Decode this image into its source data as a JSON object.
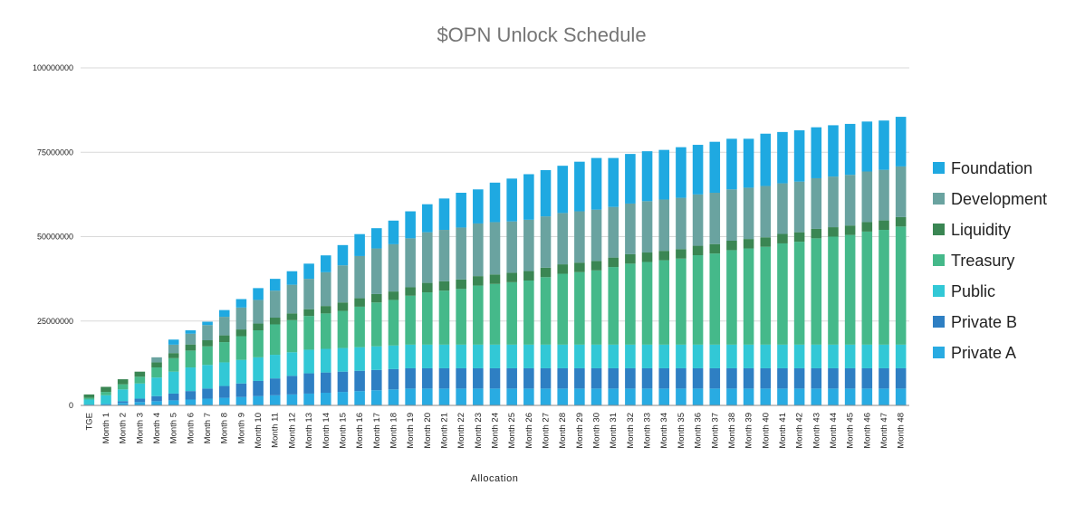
{
  "chart_data": {
    "type": "bar",
    "stacked": true,
    "title": "$OPN Unlock Schedule",
    "xlabel": "Allocation",
    "ylabel": "",
    "ylim": [
      0,
      100000000
    ],
    "yticks": [
      0,
      25000000,
      50000000,
      75000000,
      100000000
    ],
    "ytick_labels": [
      "0",
      "25000000",
      "50000000",
      "75000000",
      "100000000"
    ],
    "grid": true,
    "legend_position": "right",
    "categories": [
      "TGE",
      "Month 1",
      "Month 2",
      "Month 3",
      "Month 4",
      "Month 5",
      "Month 6",
      "Month 7",
      "Month 8",
      "Month 9",
      "Month 10",
      "Month 11",
      "Month 12",
      "Month 13",
      "Month 14",
      "Month 15",
      "Month 16",
      "Month 17",
      "Month 18",
      "Month 19",
      "Month 20",
      "Month 21",
      "Month 22",
      "Month 23",
      "Month 24",
      "Month 25",
      "Month 26",
      "Month 27",
      "Month 28",
      "Month 29",
      "Month 30",
      "Month 31",
      "Month 32",
      "Month 33",
      "Month 34",
      "Month 35",
      "Month 36",
      "Month 37",
      "Month 38",
      "Month 39",
      "Month 40",
      "Month 41",
      "Month 42",
      "Month 43",
      "Month 44",
      "Month 45",
      "Month 46",
      "Month 47",
      "Month 48"
    ],
    "series": [
      {
        "name": "Private A",
        "color": "#29abe2",
        "values": [
          250000,
          500000,
          750000,
          1000000,
          1250000,
          1500000,
          1750000,
          2000000,
          2250000,
          2500000,
          2750000,
          3000000,
          3250000,
          3500000,
          3750000,
          4000000,
          4250000,
          4500000,
          4750000,
          5000000,
          5000000,
          5000000,
          5000000,
          5000000,
          5000000,
          5000000,
          5000000,
          5000000,
          5000000,
          5000000,
          5000000,
          5000000,
          5000000,
          5000000,
          5000000,
          5000000,
          5000000,
          5000000,
          5000000,
          5000000,
          5000000,
          5000000,
          5000000,
          5000000,
          5000000,
          5000000,
          5000000,
          5000000,
          5000000
        ]
      },
      {
        "name": "Private B",
        "color": "#2e7fc3",
        "values": [
          0,
          0,
          500000,
          1000000,
          1500000,
          2000000,
          2500000,
          3000000,
          3500000,
          4000000,
          4500000,
          5000000,
          5500000,
          6000000,
          6000000,
          6000000,
          6000000,
          6000000,
          6000000,
          6000000,
          6000000,
          6000000,
          6000000,
          6000000,
          6000000,
          6000000,
          6000000,
          6000000,
          6000000,
          6000000,
          6000000,
          6000000,
          6000000,
          6000000,
          6000000,
          6000000,
          6000000,
          6000000,
          6000000,
          6000000,
          6000000,
          6000000,
          6000000,
          6000000,
          6000000,
          6000000,
          6000000,
          6000000,
          6000000
        ]
      },
      {
        "name": "Public",
        "color": "#32c8d6",
        "values": [
          1500000,
          2500000,
          3500000,
          4500000,
          5500000,
          6500000,
          7000000,
          7000000,
          7000000,
          7000000,
          7000000,
          7000000,
          7000000,
          7000000,
          7000000,
          7000000,
          7000000,
          7000000,
          7000000,
          7000000,
          7000000,
          7000000,
          7000000,
          7000000,
          7000000,
          7000000,
          7000000,
          7000000,
          7000000,
          7000000,
          7000000,
          7000000,
          7000000,
          7000000,
          7000000,
          7000000,
          7000000,
          7000000,
          7000000,
          7000000,
          7000000,
          7000000,
          7000000,
          7000000,
          7000000,
          7000000,
          7000000,
          7000000,
          7000000
        ]
      },
      {
        "name": "Treasury",
        "color": "#45b98a",
        "values": [
          500000,
          1000000,
          1500000,
          2000000,
          3000000,
          4000000,
          5000000,
          5500000,
          6000000,
          7000000,
          8000000,
          9000000,
          9500000,
          10000000,
          10500000,
          11000000,
          12000000,
          13000000,
          13500000,
          14500000,
          15500000,
          16000000,
          16500000,
          17500000,
          18000000,
          18500000,
          19000000,
          20000000,
          21000000,
          21500000,
          22000000,
          23000000,
          24000000,
          24500000,
          25000000,
          25500000,
          26500000,
          27000000,
          28000000,
          28500000,
          29000000,
          30000000,
          30500000,
          31500000,
          32000000,
          32500000,
          33500000,
          34000000,
          35000000
        ]
      },
      {
        "name": "Liquidity",
        "color": "#3a8653",
        "values": [
          1000000,
          1500000,
          1500000,
          1500000,
          1500000,
          1500000,
          1800000,
          1800000,
          2000000,
          2000000,
          2000000,
          2000000,
          2000000,
          2000000,
          2200000,
          2500000,
          2500000,
          2500000,
          2500000,
          2500000,
          2800000,
          2800000,
          2800000,
          2800000,
          2800000,
          2800000,
          2800000,
          2800000,
          2800000,
          2800000,
          2800000,
          2800000,
          2800000,
          2800000,
          2800000,
          2800000,
          2800000,
          2800000,
          2800000,
          2800000,
          2800000,
          2800000,
          2800000,
          2800000,
          2800000,
          2800000,
          2800000,
          2800000,
          2800000
        ]
      },
      {
        "name": "Development",
        "color": "#6aa3a0",
        "values": [
          0,
          0,
          0,
          0,
          1500000,
          2500000,
          3200000,
          4500000,
          5500000,
          6500000,
          7000000,
          8000000,
          8500000,
          9000000,
          10000000,
          11000000,
          12500000,
          13500000,
          14000000,
          14500000,
          15000000,
          15200000,
          15400000,
          15600000,
          15500000,
          15200000,
          15200000,
          15200000,
          15200000,
          15200000,
          15200000,
          15000000,
          15000000,
          15200000,
          15200000,
          15200000,
          15200000,
          15200000,
          15200000,
          15200000,
          15200000,
          15000000,
          15000000,
          15000000,
          15000000,
          15000000,
          15000000,
          15000000,
          15000000
        ]
      },
      {
        "name": "Foundation",
        "color": "#1fa9e1",
        "values": [
          0,
          0,
          0,
          0,
          0,
          1500000,
          1000000,
          1000000,
          2000000,
          2500000,
          3500000,
          3500000,
          4000000,
          4500000,
          5000000,
          6000000,
          6500000,
          6000000,
          7000000,
          8000000,
          8300000,
          9300000,
          10300000,
          10100000,
          11700000,
          12700000,
          13500000,
          13700000,
          14000000,
          14700000,
          15300000,
          14500000,
          14700000,
          14800000,
          14700000,
          15000000,
          14700000,
          15100000,
          15000000,
          14500000,
          15500000,
          15200000,
          15200000,
          15100000,
          15200000,
          15100000,
          14800000,
          14600000,
          14700000
        ]
      }
    ]
  }
}
